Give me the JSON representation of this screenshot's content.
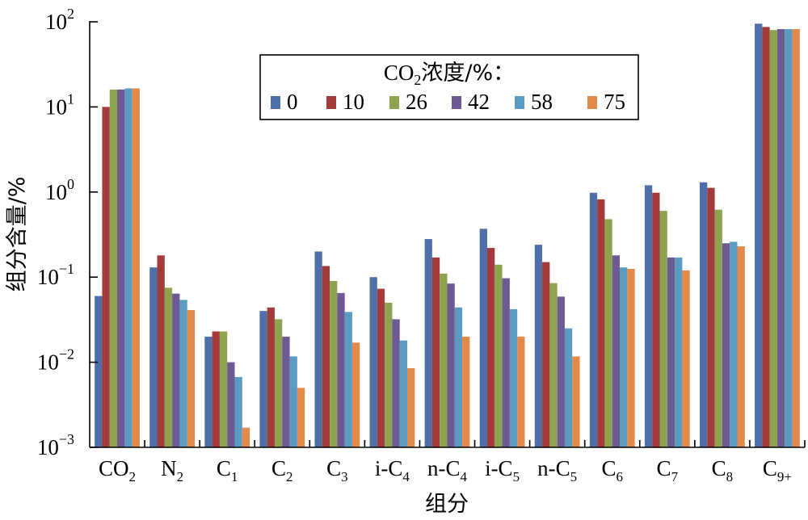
{
  "chart_data": {
    "type": "bar",
    "yscale": "log",
    "ylim": [
      0.001,
      100
    ],
    "xlabel": "组分",
    "ylabel": "组分含量/%",
    "y_ticks": [
      {
        "value": 0.001,
        "base": "10",
        "exp": "−3"
      },
      {
        "value": 0.01,
        "base": "10",
        "exp": "−2"
      },
      {
        "value": 0.1,
        "base": "10",
        "exp": "−1"
      },
      {
        "value": 1,
        "base": "10",
        "exp": "0"
      },
      {
        "value": 10,
        "base": "10",
        "exp": "1"
      },
      {
        "value": 100,
        "base": "10",
        "exp": "2"
      }
    ],
    "categories": [
      {
        "main": "CO",
        "sub": "2",
        "suffix": ""
      },
      {
        "main": "N",
        "sub": "2",
        "suffix": ""
      },
      {
        "main": "C",
        "sub": "1",
        "suffix": ""
      },
      {
        "main": "C",
        "sub": "2",
        "suffix": ""
      },
      {
        "main": "C",
        "sub": "3",
        "suffix": ""
      },
      {
        "main": "i-C",
        "sub": "4",
        "suffix": ""
      },
      {
        "main": "n-C",
        "sub": "4",
        "suffix": ""
      },
      {
        "main": "i-C",
        "sub": "5",
        "suffix": ""
      },
      {
        "main": "n-C",
        "sub": "5",
        "suffix": ""
      },
      {
        "main": "C",
        "sub": "6",
        "suffix": ""
      },
      {
        "main": "C",
        "sub": "7",
        "suffix": ""
      },
      {
        "main": "C",
        "sub": "8",
        "suffix": ""
      },
      {
        "main": "C",
        "sub": "9+",
        "suffix": ""
      }
    ],
    "legend": {
      "title_main": "CO",
      "title_sub": "2",
      "title_rest": "浓度/%：",
      "placement": "top-center"
    },
    "series": [
      {
        "name": "0",
        "color": "#4f6fa8",
        "values": [
          0.06,
          0.13,
          0.02,
          0.04,
          0.2,
          0.1,
          0.28,
          0.37,
          0.24,
          0.98,
          1.2,
          1.3,
          95
        ]
      },
      {
        "name": "10",
        "color": "#a33b3b",
        "values": [
          10,
          0.18,
          0.023,
          0.044,
          0.135,
          0.073,
          0.17,
          0.22,
          0.15,
          0.82,
          0.98,
          1.12,
          87
        ]
      },
      {
        "name": "26",
        "color": "#8da34f",
        "values": [
          16,
          0.075,
          0.023,
          0.032,
          0.09,
          0.05,
          0.11,
          0.14,
          0.085,
          0.48,
          0.6,
          0.62,
          80
        ]
      },
      {
        "name": "42",
        "color": "#6e5a93",
        "values": [
          16,
          0.064,
          0.01,
          0.02,
          0.065,
          0.032,
          0.084,
          0.097,
          0.059,
          0.18,
          0.17,
          0.25,
          82
        ]
      },
      {
        "name": "58",
        "color": "#5b9bc2",
        "values": [
          16.5,
          0.054,
          0.0067,
          0.0117,
          0.039,
          0.018,
          0.044,
          0.042,
          0.025,
          0.13,
          0.17,
          0.26,
          82
        ]
      },
      {
        "name": "75",
        "color": "#e3894a",
        "values": [
          16.5,
          0.041,
          0.0017,
          0.005,
          0.017,
          0.0085,
          0.02,
          0.02,
          0.0117,
          0.125,
          0.12,
          0.23,
          82
        ]
      }
    ]
  }
}
